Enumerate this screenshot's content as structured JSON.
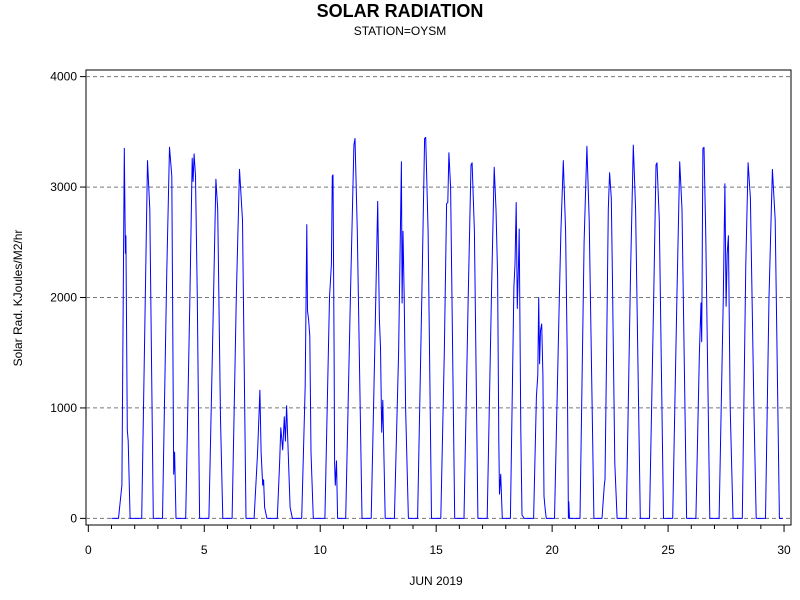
{
  "chart_data": {
    "type": "line",
    "title": "SOLAR RADIATION",
    "subtitle": "STATION=OYSM",
    "xlabel": "JUN 2019",
    "ylabel": "Solar Rad. KJoules/M2/hr",
    "xlim": [
      -0.1,
      30.3
    ],
    "ylim": [
      -60,
      4060
    ],
    "x_ticks": [
      0,
      5,
      10,
      15,
      20,
      25,
      30
    ],
    "y_ticks": [
      0,
      1000,
      2000,
      3000,
      4000
    ],
    "x_minor_step": 1,
    "grid": "horizontal-dashed",
    "series": [
      {
        "color": "#0000ff",
        "daily_peaks": [
          {
            "day": 1,
            "peak": 3350
          },
          {
            "day": 2,
            "peak": 3240
          },
          {
            "day": 3,
            "peak": 3360
          },
          {
            "day": 4,
            "peak": 3300
          },
          {
            "day": 5,
            "peak": 3070
          },
          {
            "day": 6,
            "peak": 3160
          },
          {
            "day": 7,
            "peak": 1160
          },
          {
            "day": 8,
            "peak": 1020
          },
          {
            "day": 9,
            "peak": 2660
          },
          {
            "day": 10,
            "peak": 3110
          },
          {
            "day": 11,
            "peak": 3440
          },
          {
            "day": 12,
            "peak": 2870
          },
          {
            "day": 13,
            "peak": 3230
          },
          {
            "day": 14,
            "peak": 3450
          },
          {
            "day": 15,
            "peak": 3310
          },
          {
            "day": 16,
            "peak": 3220
          },
          {
            "day": 17,
            "peak": 3180
          },
          {
            "day": 18,
            "peak": 2860
          },
          {
            "day": 19,
            "peak": 2000
          },
          {
            "day": 20,
            "peak": 3240
          },
          {
            "day": 21,
            "peak": 3370
          },
          {
            "day": 22,
            "peak": 3130
          },
          {
            "day": 23,
            "peak": 3380
          },
          {
            "day": 24,
            "peak": 3220
          },
          {
            "day": 25,
            "peak": 3230
          },
          {
            "day": 26,
            "peak": 3360
          },
          {
            "day": 27,
            "peak": 3030
          },
          {
            "day": 28,
            "peak": 3220
          },
          {
            "day": 29,
            "peak": 3160
          }
        ],
        "points": [
          [
            1.0,
            0
          ],
          [
            1.3,
            0
          ],
          [
            1.45,
            300
          ],
          [
            1.55,
            3350
          ],
          [
            1.6,
            2400
          ],
          [
            1.62,
            2560
          ],
          [
            1.68,
            800
          ],
          [
            1.72,
            700
          ],
          [
            1.8,
            0
          ],
          [
            2.3,
            0
          ],
          [
            2.42,
            1500
          ],
          [
            2.55,
            3240
          ],
          [
            2.65,
            2800
          ],
          [
            2.8,
            0
          ],
          [
            3.2,
            0
          ],
          [
            3.38,
            2200
          ],
          [
            3.5,
            3360
          ],
          [
            3.6,
            3100
          ],
          [
            3.68,
            400
          ],
          [
            3.72,
            600
          ],
          [
            3.78,
            0
          ],
          [
            4.2,
            0
          ],
          [
            4.38,
            2000
          ],
          [
            4.48,
            3260
          ],
          [
            4.52,
            3050
          ],
          [
            4.56,
            3300
          ],
          [
            4.62,
            3100
          ],
          [
            4.7,
            2000
          ],
          [
            4.8,
            0
          ],
          [
            5.2,
            0
          ],
          [
            5.35,
            1500
          ],
          [
            5.5,
            3070
          ],
          [
            5.58,
            2800
          ],
          [
            5.7,
            900
          ],
          [
            5.8,
            0
          ],
          [
            6.2,
            0
          ],
          [
            6.38,
            2000
          ],
          [
            6.52,
            3160
          ],
          [
            6.65,
            2700
          ],
          [
            6.8,
            0
          ],
          [
            7.15,
            0
          ],
          [
            7.3,
            600
          ],
          [
            7.4,
            1160
          ],
          [
            7.45,
            600
          ],
          [
            7.52,
            300
          ],
          [
            7.56,
            350
          ],
          [
            7.6,
            100
          ],
          [
            7.7,
            0
          ],
          [
            8.15,
            0
          ],
          [
            8.25,
            500
          ],
          [
            8.3,
            820
          ],
          [
            8.38,
            620
          ],
          [
            8.45,
            920
          ],
          [
            8.5,
            700
          ],
          [
            8.55,
            1020
          ],
          [
            8.62,
            600
          ],
          [
            8.7,
            100
          ],
          [
            8.8,
            0
          ],
          [
            9.2,
            0
          ],
          [
            9.35,
            1200
          ],
          [
            9.42,
            2660
          ],
          [
            9.45,
            1880
          ],
          [
            9.5,
            1800
          ],
          [
            9.55,
            1650
          ],
          [
            9.6,
            600
          ],
          [
            9.7,
            0
          ],
          [
            10.2,
            0
          ],
          [
            10.4,
            2000
          ],
          [
            10.48,
            2300
          ],
          [
            10.52,
            3100
          ],
          [
            10.55,
            3110
          ],
          [
            10.6,
            1500
          ],
          [
            10.62,
            500
          ],
          [
            10.65,
            300
          ],
          [
            10.7,
            520
          ],
          [
            10.75,
            0
          ],
          [
            11.1,
            0
          ],
          [
            11.3,
            2000
          ],
          [
            11.45,
            3380
          ],
          [
            11.5,
            3440
          ],
          [
            11.6,
            2600
          ],
          [
            11.8,
            0
          ],
          [
            12.2,
            0
          ],
          [
            12.35,
            1500
          ],
          [
            12.48,
            2870
          ],
          [
            12.55,
            1800
          ],
          [
            12.6,
            1550
          ],
          [
            12.65,
            780
          ],
          [
            12.7,
            1070
          ],
          [
            12.8,
            0
          ],
          [
            13.2,
            0
          ],
          [
            13.38,
            1500
          ],
          [
            13.5,
            3230
          ],
          [
            13.53,
            1950
          ],
          [
            13.57,
            2600
          ],
          [
            13.62,
            2000
          ],
          [
            13.68,
            1000
          ],
          [
            13.8,
            0
          ],
          [
            14.2,
            0
          ],
          [
            14.38,
            2000
          ],
          [
            14.5,
            3440
          ],
          [
            14.55,
            3450
          ],
          [
            14.65,
            2600
          ],
          [
            14.8,
            0
          ],
          [
            15.2,
            0
          ],
          [
            15.35,
            1500
          ],
          [
            15.45,
            2850
          ],
          [
            15.5,
            2860
          ],
          [
            15.55,
            3310
          ],
          [
            15.62,
            3000
          ],
          [
            15.8,
            0
          ],
          [
            16.2,
            0
          ],
          [
            16.38,
            2000
          ],
          [
            16.5,
            3200
          ],
          [
            16.55,
            3220
          ],
          [
            16.65,
            2600
          ],
          [
            16.8,
            0
          ],
          [
            17.2,
            0
          ],
          [
            17.38,
            2000
          ],
          [
            17.5,
            3180
          ],
          [
            17.58,
            2800
          ],
          [
            17.65,
            2200
          ],
          [
            17.7,
            700
          ],
          [
            17.73,
            220
          ],
          [
            17.78,
            400
          ],
          [
            17.85,
            0
          ],
          [
            18.2,
            0
          ],
          [
            18.35,
            2100
          ],
          [
            18.4,
            2300
          ],
          [
            18.45,
            2860
          ],
          [
            18.5,
            1900
          ],
          [
            18.55,
            2300
          ],
          [
            18.58,
            2620
          ],
          [
            18.65,
            800
          ],
          [
            18.7,
            30
          ],
          [
            18.8,
            0
          ],
          [
            19.2,
            0
          ],
          [
            19.32,
            1100
          ],
          [
            19.38,
            1300
          ],
          [
            19.42,
            2000
          ],
          [
            19.46,
            1400
          ],
          [
            19.5,
            1700
          ],
          [
            19.55,
            1760
          ],
          [
            19.6,
            1300
          ],
          [
            19.65,
            200
          ],
          [
            19.7,
            80
          ],
          [
            19.75,
            0
          ],
          [
            20.1,
            0
          ],
          [
            20.3,
            1900
          ],
          [
            20.38,
            2600
          ],
          [
            20.48,
            3240
          ],
          [
            20.58,
            2600
          ],
          [
            20.65,
            1500
          ],
          [
            20.7,
            0
          ],
          [
            20.72,
            150
          ],
          [
            20.75,
            0
          ],
          [
            21.2,
            0
          ],
          [
            21.38,
            2500
          ],
          [
            21.5,
            3370
          ],
          [
            21.6,
            2700
          ],
          [
            21.8,
            0
          ],
          [
            22.15,
            0
          ],
          [
            22.25,
            300
          ],
          [
            22.28,
            350
          ],
          [
            22.35,
            1500
          ],
          [
            22.42,
            2800
          ],
          [
            22.48,
            3130
          ],
          [
            22.55,
            2900
          ],
          [
            22.6,
            2200
          ],
          [
            22.7,
            500
          ],
          [
            22.8,
            0
          ],
          [
            23.2,
            0
          ],
          [
            23.38,
            2200
          ],
          [
            23.5,
            3380
          ],
          [
            23.6,
            2800
          ],
          [
            23.8,
            0
          ],
          [
            24.2,
            0
          ],
          [
            24.38,
            2000
          ],
          [
            24.48,
            3200
          ],
          [
            24.52,
            3220
          ],
          [
            24.62,
            2700
          ],
          [
            24.8,
            0
          ],
          [
            25.2,
            0
          ],
          [
            25.38,
            2000
          ],
          [
            25.5,
            3230
          ],
          [
            25.6,
            2800
          ],
          [
            25.8,
            0
          ],
          [
            26.2,
            0
          ],
          [
            26.35,
            1500
          ],
          [
            26.42,
            1950
          ],
          [
            26.45,
            1600
          ],
          [
            26.5,
            3350
          ],
          [
            26.55,
            3360
          ],
          [
            26.62,
            2600
          ],
          [
            26.8,
            0
          ],
          [
            27.2,
            0
          ],
          [
            27.38,
            2000
          ],
          [
            27.45,
            3030
          ],
          [
            27.5,
            1920
          ],
          [
            27.55,
            2400
          ],
          [
            27.6,
            2560
          ],
          [
            27.68,
            1000
          ],
          [
            27.8,
            0
          ],
          [
            28.2,
            0
          ],
          [
            28.35,
            2300
          ],
          [
            28.45,
            3220
          ],
          [
            28.55,
            2900
          ],
          [
            28.7,
            1000
          ],
          [
            28.8,
            0
          ],
          [
            29.2,
            0
          ],
          [
            29.35,
            2000
          ],
          [
            29.5,
            3160
          ],
          [
            29.62,
            2700
          ],
          [
            29.8,
            0
          ],
          [
            29.95,
            0
          ]
        ]
      }
    ]
  }
}
